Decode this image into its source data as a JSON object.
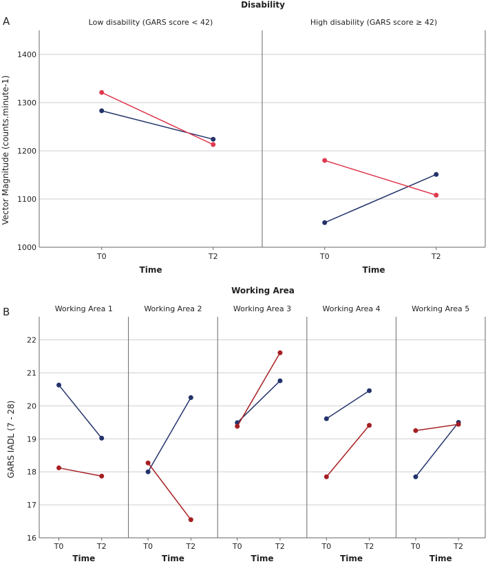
{
  "colors": {
    "blue": "#23336b",
    "pink": "#e0394f",
    "darkred": "#a51f22",
    "grid": "#cfcfcf",
    "axis": "#666666"
  },
  "panel_a": {
    "label": "A",
    "facet_title": "Disability",
    "ylabel": "Vector Magnitude (counts.minute-1)",
    "xlabel": "Time"
  },
  "panel_b": {
    "label": "B",
    "facet_title": "Working Area",
    "ylabel": "GARS IADL (7 - 28)",
    "xlabel": "Time"
  },
  "chart_data": [
    {
      "type": "line",
      "panel": "A",
      "facet_title": "Disability",
      "ylabel": "Vector Magnitude (counts.minute-1)",
      "xlabel": "Time",
      "categories": [
        "T0",
        "T2"
      ],
      "ylim": [
        1000,
        1450
      ],
      "yticks": [
        1000,
        1100,
        1200,
        1300,
        1400
      ],
      "grid": true,
      "facets": [
        {
          "title": "Low disability (GARS score < 42)",
          "series": [
            {
              "name": "blue",
              "color": "#23336b",
              "values": [
                1283,
                1224
              ]
            },
            {
              "name": "pink",
              "color": "#e0394f",
              "values": [
                1321,
                1213
              ]
            }
          ]
        },
        {
          "title": "High disability (GARS score ≥ 42)",
          "series": [
            {
              "name": "blue",
              "color": "#23336b",
              "values": [
                1051,
                1151
              ]
            },
            {
              "name": "pink",
              "color": "#e0394f",
              "values": [
                1180,
                1108
              ]
            }
          ]
        }
      ]
    },
    {
      "type": "line",
      "panel": "B",
      "facet_title": "Working Area",
      "ylabel": "GARS IADL (7 - 28)",
      "xlabel": "Time",
      "categories": [
        "T0",
        "T2"
      ],
      "ylim": [
        16,
        22.7
      ],
      "yticks": [
        16,
        17,
        18,
        19,
        20,
        21,
        22
      ],
      "grid": true,
      "facets": [
        {
          "title": "Working Area 1",
          "series": [
            {
              "name": "blue",
              "color": "#23336b",
              "values": [
                20.63,
                19.02
              ]
            },
            {
              "name": "red",
              "color": "#a51f22",
              "values": [
                18.12,
                17.87
              ]
            }
          ]
        },
        {
          "title": "Working Area 2",
          "series": [
            {
              "name": "blue",
              "color": "#23336b",
              "values": [
                18.0,
                20.25
              ]
            },
            {
              "name": "red",
              "color": "#a51f22",
              "values": [
                18.27,
                16.55
              ]
            }
          ]
        },
        {
          "title": "Working Area 3",
          "series": [
            {
              "name": "blue",
              "color": "#23336b",
              "values": [
                19.49,
                20.76
              ]
            },
            {
              "name": "red",
              "color": "#a51f22",
              "values": [
                19.38,
                21.61
              ]
            }
          ]
        },
        {
          "title": "Working Area 4",
          "series": [
            {
              "name": "blue",
              "color": "#23336b",
              "values": [
                19.61,
                20.46
              ]
            },
            {
              "name": "red",
              "color": "#a51f22",
              "values": [
                17.85,
                19.41
              ]
            }
          ]
        },
        {
          "title": "Working Area 5",
          "series": [
            {
              "name": "blue",
              "color": "#23336b",
              "values": [
                17.85,
                19.5
              ]
            },
            {
              "name": "red",
              "color": "#a51f22",
              "values": [
                19.25,
                19.44
              ]
            }
          ]
        }
      ]
    }
  ]
}
